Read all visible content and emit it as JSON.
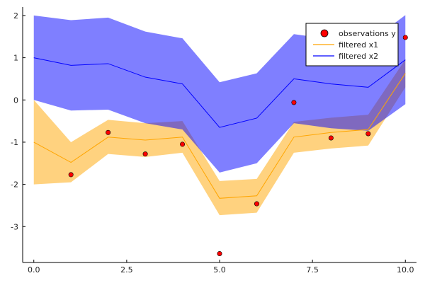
{
  "chart_data": {
    "type": "line",
    "title": "",
    "xlabel": "",
    "ylabel": "",
    "xlim": [
      -0.3,
      10.3
    ],
    "ylim": [
      -3.85,
      2.2
    ],
    "xticks": [
      0,
      2.5,
      5,
      7.5,
      10
    ],
    "xtick_labels": [
      "0.0",
      "2.5",
      "5.0",
      "7.5",
      "10.0"
    ],
    "yticks": [
      2,
      1,
      0,
      -1,
      -2,
      -3
    ],
    "ytick_labels": [
      "2",
      "1",
      "0",
      "-1",
      "-2",
      "-3"
    ],
    "grid": false,
    "legend_position": "top-right",
    "series": [
      {
        "name": "observations y",
        "kind": "scatter",
        "color": "#ff0000",
        "x": [
          1,
          2,
          3,
          4,
          5,
          6,
          7,
          8,
          9,
          10
        ],
        "y": [
          -1.77,
          -0.77,
          -1.28,
          -1.05,
          -3.64,
          -2.46,
          -0.06,
          -0.9,
          -0.8,
          1.48
        ]
      },
      {
        "name": "filtered x1",
        "kind": "line",
        "color": "#ffa500",
        "band_color": "#ffa500",
        "x": [
          0,
          1,
          2,
          3,
          4,
          5,
          6,
          7,
          8,
          9,
          10
        ],
        "y": [
          -1.0,
          -1.48,
          -0.88,
          -0.95,
          -0.88,
          -2.33,
          -2.27,
          -0.88,
          -0.77,
          -0.7,
          0.63
        ],
        "lower": [
          -2.0,
          -1.95,
          -1.28,
          -1.35,
          -1.25,
          -2.73,
          -2.67,
          -1.25,
          -1.15,
          -1.08,
          0.3
        ],
        "upper": [
          0.0,
          -1.0,
          -0.47,
          -0.55,
          -0.5,
          -1.92,
          -1.87,
          -0.52,
          -0.42,
          -0.35,
          0.96
        ]
      },
      {
        "name": "filtered x2",
        "kind": "line",
        "color": "#0000ff",
        "band_color": "#0000ff",
        "x": [
          0,
          1,
          2,
          3,
          4,
          5,
          6,
          7,
          8,
          9,
          10
        ],
        "y": [
          1.0,
          0.82,
          0.86,
          0.54,
          0.38,
          -0.65,
          -0.43,
          0.5,
          0.38,
          0.3,
          0.95
        ],
        "lower": [
          0.0,
          -0.25,
          -0.23,
          -0.55,
          -0.7,
          -1.72,
          -1.5,
          -0.55,
          -0.67,
          -0.73,
          -0.1
        ],
        "upper": [
          2.0,
          1.89,
          1.95,
          1.62,
          1.46,
          0.42,
          0.63,
          1.56,
          1.44,
          1.35,
          2.01
        ]
      }
    ]
  }
}
